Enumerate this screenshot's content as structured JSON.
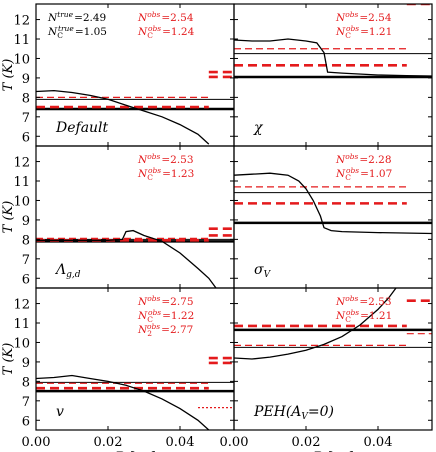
{
  "chart_data": {
    "type": "line",
    "layout": "3x2 grid, shared axes",
    "xlabel": "R [pc]",
    "ylabel": "T (K)",
    "xlim": [
      0.0,
      0.055
    ],
    "ylim": [
      5.5,
      12.8
    ],
    "xticks": [
      0.0,
      0.02,
      0.04
    ],
    "xtick_labels": [
      "0.00",
      "0.02",
      "0.04"
    ],
    "yticks": [
      6,
      7,
      8,
      9,
      10,
      11,
      12
    ],
    "colors": {
      "model": "#000000",
      "observed": "#e41a1c"
    },
    "panels": [
      {
        "label": "Default",
        "label_style": "italic",
        "annotations": [
          {
            "text": "N^true = 2.49",
            "sym": "N",
            "sup": "true",
            "value": "=2.49",
            "color": "black",
            "col": "left",
            "row": 0
          },
          {
            "text": "N_C^true = 1.05",
            "sym": "N",
            "sub": "C",
            "sup": "true",
            "value": "=1.05",
            "color": "black",
            "col": "left",
            "row": 1
          },
          {
            "text": "N^obs = 2.54",
            "sym": "N",
            "sup": "obs",
            "value": "=2.54",
            "color": "red",
            "col": "right",
            "row": 0
          },
          {
            "text": "N_C^obs = 1.24",
            "sym": "N",
            "sub": "C",
            "sup": "obs",
            "value": "=1.24",
            "color": "red",
            "col": "right",
            "row": 1
          }
        ],
        "profile": {
          "x": [
            0.0,
            0.005,
            0.01,
            0.015,
            0.02,
            0.025,
            0.03,
            0.035,
            0.04,
            0.045,
            0.048
          ],
          "y": [
            8.3,
            8.35,
            8.25,
            8.1,
            7.9,
            7.6,
            7.3,
            7.0,
            6.6,
            6.1,
            5.6
          ]
        },
        "model_lines": [
          {
            "y": 7.9,
            "width": 1
          },
          {
            "y": 7.4,
            "width": 2.5
          }
        ],
        "obs_lines": [
          {
            "y": 8.0,
            "style": "dashed-thin",
            "x": [
              0.0,
              0.048
            ]
          },
          {
            "y": 7.5,
            "style": "dashed-thick",
            "x": [
              0.0,
              0.048
            ]
          }
        ],
        "obs_edge": [
          {
            "y": 9.3,
            "x": [
              0.048,
              0.055
            ],
            "style": "dashed-thick"
          },
          {
            "y": 9.05,
            "x": [
              0.048,
              0.055
            ],
            "style": "dashed-thick"
          }
        ]
      },
      {
        "label": "χ",
        "label_style": "italic",
        "annotations": [
          {
            "text": "N^obs = 2.54",
            "sym": "N",
            "sup": "obs",
            "value": "=2.54",
            "color": "red",
            "col": "right",
            "row": 0
          },
          {
            "text": "N_C^obs = 1.21",
            "sym": "N",
            "sub": "C",
            "sup": "obs",
            "value": "=1.21",
            "color": "red",
            "col": "right",
            "row": 1
          }
        ],
        "profile": {
          "x": [
            0.0,
            0.005,
            0.01,
            0.015,
            0.02,
            0.023,
            0.025,
            0.026,
            0.03,
            0.04,
            0.048,
            0.055
          ],
          "y": [
            10.95,
            10.9,
            10.9,
            11.0,
            10.9,
            10.8,
            10.3,
            9.3,
            9.25,
            9.15,
            9.12,
            9.1
          ]
        },
        "model_lines": [
          {
            "y": 10.25,
            "width": 1
          },
          {
            "y": 9.05,
            "width": 2.5
          }
        ],
        "obs_lines": [
          {
            "y": 10.5,
            "style": "dashed-thin",
            "x": [
              0.0,
              0.048
            ]
          },
          {
            "y": 9.65,
            "style": "dashed-thick",
            "x": [
              0.0,
              0.048
            ]
          }
        ],
        "obs_edge": [
          {
            "y": 12.8,
            "x": [
              0.048,
              0.055
            ],
            "style": "dashed-thick"
          }
        ]
      },
      {
        "label": "Λ",
        "label_sub": "g,d",
        "label_style": "italic",
        "annotations": [
          {
            "text": "N^obs = 2.53",
            "sym": "N",
            "sup": "obs",
            "value": "=2.53",
            "color": "red",
            "col": "right",
            "row": 0
          },
          {
            "text": "N_C^obs = 1.23",
            "sym": "N",
            "sub": "C",
            "sup": "obs",
            "value": "=1.23",
            "color": "red",
            "col": "right",
            "row": 1
          }
        ],
        "profile": {
          "x": [
            0.0,
            0.01,
            0.02,
            0.024,
            0.025,
            0.027,
            0.03,
            0.035,
            0.04,
            0.045,
            0.048,
            0.05
          ],
          "y": [
            7.95,
            7.95,
            7.95,
            8.0,
            8.4,
            8.45,
            8.2,
            7.9,
            7.3,
            6.5,
            6.0,
            5.5
          ]
        },
        "model_lines": [
          {
            "y": 8.0,
            "width": 1
          },
          {
            "y": 7.9,
            "width": 2.5
          }
        ],
        "obs_lines": [
          {
            "y": 8.05,
            "style": "dashed-thin",
            "x": [
              0.0,
              0.048
            ]
          },
          {
            "y": 7.95,
            "style": "dashed-thick",
            "x": [
              0.0,
              0.048
            ]
          }
        ],
        "obs_edge": [
          {
            "y": 8.55,
            "x": [
              0.048,
              0.055
            ],
            "style": "dashed-thick"
          },
          {
            "y": 8.2,
            "x": [
              0.048,
              0.055
            ],
            "style": "dashed-thick"
          }
        ]
      },
      {
        "label": "σ",
        "label_sub": "V",
        "label_style": "italic",
        "annotations": [
          {
            "text": "N^obs = 2.28",
            "sym": "N",
            "sup": "obs",
            "value": "=2.28",
            "color": "red",
            "col": "right",
            "row": 0
          },
          {
            "text": "N_C^obs = 1.07",
            "sym": "N",
            "sub": "C",
            "sup": "obs",
            "value": "=1.07",
            "color": "red",
            "col": "right",
            "row": 1
          }
        ],
        "profile": {
          "x": [
            0.0,
            0.005,
            0.01,
            0.015,
            0.018,
            0.02,
            0.022,
            0.024,
            0.025,
            0.027,
            0.03,
            0.04,
            0.055
          ],
          "y": [
            11.3,
            11.35,
            11.4,
            11.3,
            11.0,
            10.6,
            10.0,
            9.2,
            8.6,
            8.45,
            8.4,
            8.35,
            8.3
          ]
        },
        "model_lines": [
          {
            "y": 10.4,
            "width": 1
          },
          {
            "y": 8.85,
            "width": 2.5
          }
        ],
        "obs_lines": [
          {
            "y": 10.7,
            "style": "dashed-thin",
            "x": [
              0.0,
              0.048
            ]
          },
          {
            "y": 9.85,
            "style": "dashed-thick",
            "x": [
              0.0,
              0.048
            ]
          }
        ],
        "obs_edge": []
      },
      {
        "label": "v",
        "label_style": "italic",
        "annotations": [
          {
            "text": "N^obs = 2.75",
            "sym": "N",
            "sup": "obs",
            "value": "=2.75",
            "color": "red",
            "col": "right",
            "row": 0
          },
          {
            "text": "N_C^obs = 1.22",
            "sym": "N",
            "sub": "C",
            "sup": "obs",
            "value": "=1.22",
            "color": "red",
            "col": "right",
            "row": 1
          },
          {
            "text": "N_2^obs = 2.77",
            "sym": "N",
            "sub": "2",
            "sup": "obs",
            "value": "=2.77",
            "color": "red",
            "col": "right",
            "row": 2
          }
        ],
        "profile": {
          "x": [
            0.0,
            0.005,
            0.01,
            0.015,
            0.02,
            0.025,
            0.03,
            0.035,
            0.04,
            0.045,
            0.048
          ],
          "y": [
            8.15,
            8.2,
            8.3,
            8.15,
            8.0,
            7.8,
            7.5,
            7.1,
            6.6,
            6.0,
            5.5
          ]
        },
        "model_lines": [
          {
            "y": 7.95,
            "width": 1
          },
          {
            "y": 7.5,
            "width": 2.5
          }
        ],
        "obs_lines": [
          {
            "y": 7.9,
            "style": "dashed-thin",
            "x": [
              0.0,
              0.048
            ]
          },
          {
            "y": 7.65,
            "style": "dashed-thick",
            "x": [
              0.0,
              0.048
            ]
          }
        ],
        "obs_edge": [
          {
            "y": 9.2,
            "x": [
              0.048,
              0.055
            ],
            "style": "dashed-thick"
          },
          {
            "y": 8.95,
            "x": [
              0.048,
              0.055
            ],
            "style": "dashed-thick"
          },
          {
            "y": 6.65,
            "x": [
              0.045,
              0.055
            ],
            "style": "dotted"
          }
        ]
      },
      {
        "label": "PEH(A",
        "label_sub": "V",
        "label_end": "=0)",
        "label_style": "italic",
        "annotations": [
          {
            "text": "N^obs = 2.53",
            "sym": "N",
            "sup": "obs",
            "value": "=2.53",
            "color": "red",
            "col": "right",
            "row": 0
          },
          {
            "text": "N_C^obs = 1.21",
            "sym": "N",
            "sub": "C",
            "sup": "obs",
            "value": "=1.21",
            "color": "red",
            "col": "right",
            "row": 1
          }
        ],
        "profile": {
          "x": [
            0.0,
            0.005,
            0.01,
            0.015,
            0.02,
            0.025,
            0.03,
            0.035,
            0.04,
            0.043,
            0.045
          ],
          "y": [
            9.2,
            9.15,
            9.25,
            9.4,
            9.6,
            9.9,
            10.3,
            10.9,
            11.7,
            12.3,
            12.8
          ]
        },
        "model_lines": [
          {
            "y": 10.65,
            "width": 2.5
          },
          {
            "y": 9.75,
            "width": 1
          }
        ],
        "obs_lines": [
          {
            "y": 10.85,
            "style": "dashed-thick",
            "x": [
              0.0,
              0.048
            ]
          },
          {
            "y": 9.85,
            "style": "dashed-thin",
            "x": [
              0.0,
              0.048
            ]
          }
        ],
        "obs_edge": [
          {
            "y": 12.15,
            "x": [
              0.048,
              0.055
            ],
            "style": "dashed-thick"
          },
          {
            "y": 10.45,
            "x": [
              0.048,
              0.055
            ],
            "style": "dashed-thin"
          }
        ]
      }
    ]
  }
}
